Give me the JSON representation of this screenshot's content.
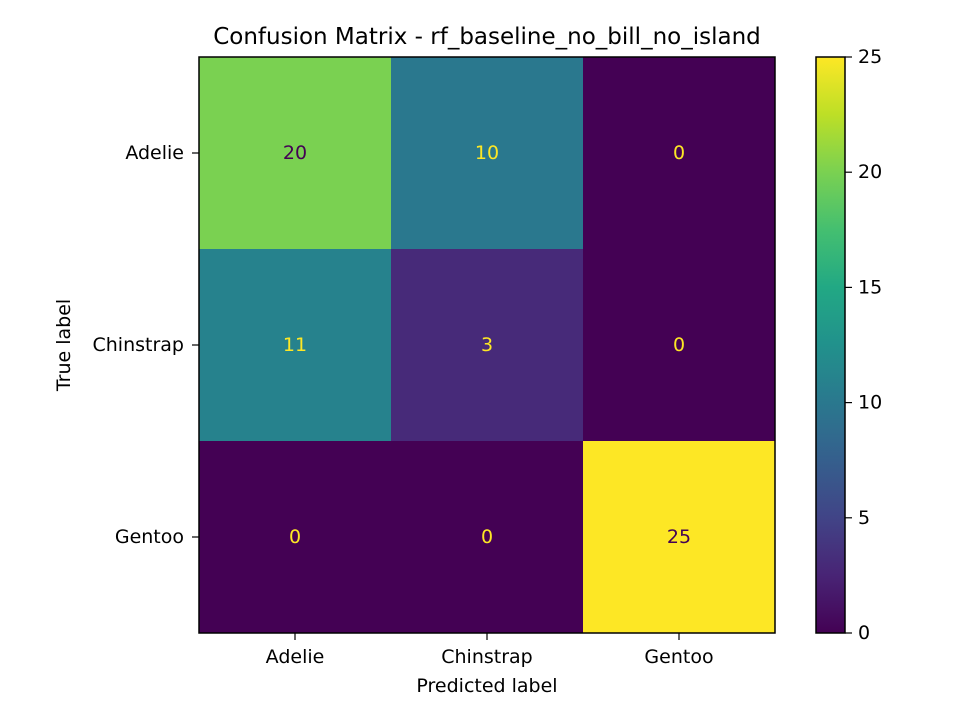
{
  "chart_data": {
    "type": "heatmap",
    "title": "Confusion Matrix - rf_baseline_no_bill_no_island",
    "xlabel": "Predicted label",
    "ylabel": "True label",
    "x_categories": [
      "Adelie",
      "Chinstrap",
      "Gentoo"
    ],
    "y_categories": [
      "Adelie",
      "Chinstrap",
      "Gentoo"
    ],
    "values": [
      [
        20,
        10,
        0
      ],
      [
        11,
        3,
        0
      ],
      [
        0,
        0,
        25
      ]
    ],
    "colormap": "viridis",
    "colorbar": {
      "range": [
        0,
        25
      ],
      "ticks": [
        0,
        5,
        10,
        15,
        20,
        25
      ]
    },
    "text_colors": {
      "on_light": "#440154",
      "on_dark": "#fde725"
    }
  }
}
